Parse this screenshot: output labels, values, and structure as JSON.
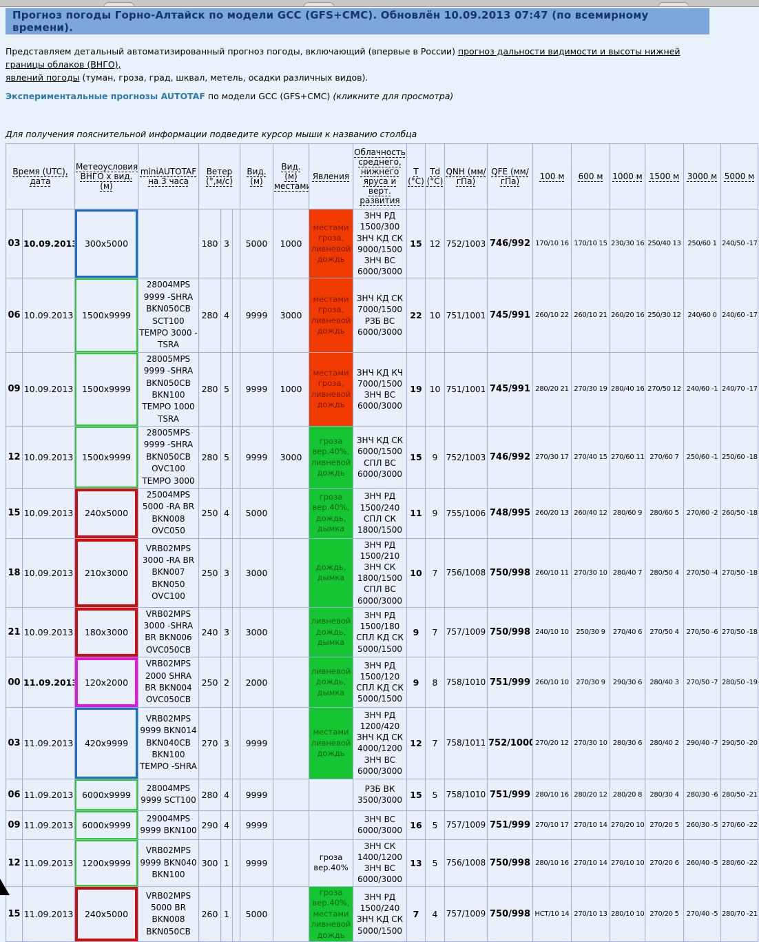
{
  "header": {
    "title": "Прогноз погоды Горно-Алтайск по модели GCC (GFS+CMC). Обновлён 10.09.2013 07:47 (по всемирному времени)."
  },
  "intro": {
    "text_before": "Представляем детальный автоматизированный прогноз погоды, включающий (впервые в России) ",
    "link_visibility": "прогноз дальности видимости и высоты нижней границы облаков (ВНГО),",
    "link_phenomena": "явлений погоды",
    "text_after": " (туман, гроза, град, шквал, метель, осадки различных видов)."
  },
  "autotaf": {
    "link": "Экспериментальные прогнозы AUTOTAF",
    "middle": " по модели GCC (GFS+CMC) ",
    "note": "(кликните для просмотра)"
  },
  "hint": "Для получения пояснительной информации подведите курсор мыши к названию столбца",
  "colors": {
    "banner_bg": "#7ca6dc",
    "title_color": "#17366a",
    "link_color": "#2e7bad",
    "ph_red_bg": "#f13a00",
    "ph_red_text": "#7a1c00",
    "ph_green_bg": "#16c532",
    "ph_green_text": "#156415",
    "ring_blue": "#1b6fc8",
    "ring_green": "#2fcc2f",
    "ring_red": "#cc0f0f",
    "ring_magenta": "#e018d8",
    "grid": "#9faedb",
    "cell_bg": "#e9f0fb"
  },
  "table": {
    "column_keys": [
      "time",
      "date",
      "meteo",
      "autotaf",
      "wind_dir",
      "wind_speed",
      "wind_gust",
      "vis",
      "vis_places",
      "phenomena",
      "clouds",
      "t",
      "td",
      "qnh",
      "qfe",
      "h100",
      "h600",
      "h1000",
      "h1500",
      "h3000",
      "h5000"
    ],
    "headers": [
      "Время (UTC), дата",
      "Метеоусловия ВНГО х вид. (м)",
      "miniAUTOTAF на 3 часа",
      "Ветер (°,м/с)",
      "Вид. (м)",
      "Вид. (м) местами*",
      "Явления",
      "Облачность среднего, нижнего яруса и верт. развития",
      "Т (°С)",
      "Td (°С)",
      "QNH (мм/гПа)",
      "QFE (мм/гПа)",
      "100 м",
      "600 м",
      "1000 м",
      "1500 м",
      "3000 м",
      "5000 м"
    ],
    "rows": [
      {
        "time": "03",
        "date": "10.09.2013",
        "date_bold": true,
        "meteo": "300x5000",
        "meteo_ring": "blue",
        "autotaf": "",
        "wind_dir": "180",
        "wind_speed": "3",
        "wind_gust": "",
        "vis": "5000",
        "vis_places": "1000",
        "phenomena": "местами гроза, ливневой дождь",
        "phenomena_style": "red",
        "clouds": "ЗНЧ РД 1500/300 ЗНЧ КД СК 9000/1500 ЗНЧ ВС 6000/3000",
        "t": "15",
        "td": "12",
        "qnh": "752/1003",
        "qfe": "746/992",
        "h100": "170/10 16",
        "h600": "170/10 15",
        "h1000": "230/30 16",
        "h1500": "250/40 13",
        "h3000": "250/60 1",
        "h5000": "240/50 -17"
      },
      {
        "time": "06",
        "date": "10.09.2013",
        "date_bold": false,
        "meteo": "1500x9999",
        "meteo_ring": "green",
        "autotaf": "28004MPS 9999 -SHRA BKN050CB SCT100 TEMPO 3000 -TSRA",
        "wind_dir": "280",
        "wind_speed": "4",
        "wind_gust": "",
        "vis": "9999",
        "vis_places": "3000",
        "phenomena": "местами гроза, ливневой дождь",
        "phenomena_style": "red",
        "clouds": "ЗНЧ КД СК 7000/1500 РЗБ ВС 6000/3000",
        "t": "22",
        "td": "10",
        "qnh": "751/1001",
        "qfe": "745/991",
        "h100": "260/10 22",
        "h600": "260/10 21",
        "h1000": "260/20 16",
        "h1500": "250/30 12",
        "h3000": "240/60 0",
        "h5000": "240/60 -17"
      },
      {
        "time": "09",
        "date": "10.09.2013",
        "date_bold": false,
        "meteo": "1500x9999",
        "meteo_ring": "green",
        "autotaf": "28005MPS 9999 -SHRA BKN050CB BKN100 TEMPO 1000 TSRA",
        "wind_dir": "280",
        "wind_speed": "5",
        "wind_gust": "",
        "vis": "9999",
        "vis_places": "1000",
        "phenomena": "местами гроза, ливневой дождь",
        "phenomena_style": "red",
        "clouds": "ЗНЧ КД КЧ 7000/1500 ЗНЧ ВС 6000/3000",
        "t": "19",
        "td": "10",
        "qnh": "751/1001",
        "qfe": "745/991",
        "h100": "280/20 21",
        "h600": "270/30 19",
        "h1000": "280/40 16",
        "h1500": "270/50 12",
        "h3000": "240/60 -1",
        "h5000": "240/70 -17"
      },
      {
        "time": "12",
        "date": "10.09.2013",
        "date_bold": false,
        "meteo": "1500x9999",
        "meteo_ring": "green",
        "autotaf": "28005MPS 9999 -SHRA BKN050CB OVC100 TEMPO 3000",
        "wind_dir": "280",
        "wind_speed": "5",
        "wind_gust": "",
        "vis": "9999",
        "vis_places": "3000",
        "phenomena": "гроза вер.40%, ливневой дождь",
        "phenomena_style": "green",
        "clouds": "ЗНЧ КД СК 6000/1500 СПЛ ВС 6000/3000",
        "t": "15",
        "td": "9",
        "qnh": "752/1003",
        "qfe": "746/992",
        "h100": "270/30 17",
        "h600": "270/40 15",
        "h1000": "270/60 11",
        "h1500": "270/60 7",
        "h3000": "250/60 -1",
        "h5000": "250/60 -18"
      },
      {
        "time": "15",
        "date": "10.09.2013",
        "date_bold": false,
        "meteo": "240x5000",
        "meteo_ring": "red",
        "autotaf": "25004MPS 5000 -RA BR BKN008 OVC050",
        "wind_dir": "250",
        "wind_speed": "4",
        "wind_gust": "",
        "vis": "5000",
        "vis_places": "",
        "phenomena": "гроза вер.40%, дождь, дымка",
        "phenomena_style": "green",
        "clouds": "ЗНЧ РД 1500/240 СПЛ СК 1800/1500",
        "t": "11",
        "td": "9",
        "qnh": "755/1006",
        "qfe": "748/995",
        "h100": "260/20 13",
        "h600": "260/40 12",
        "h1000": "280/60 9",
        "h1500": "280/60 5",
        "h3000": "270/60 -2",
        "h5000": "260/50 -18"
      },
      {
        "time": "18",
        "date": "10.09.2013",
        "date_bold": false,
        "meteo": "210x3000",
        "meteo_ring": "red",
        "autotaf": "VRB02MPS 3000 -RA BR BKN007 BKN050 OVC100",
        "wind_dir": "250",
        "wind_speed": "3",
        "wind_gust": "",
        "vis": "3000",
        "vis_places": "",
        "phenomena": "дождь, дымка",
        "phenomena_style": "green",
        "clouds": "ЗНЧ РД 1500/210 ЗНЧ СК 1800/1500 СПЛ ВС 6000/3000",
        "t": "10",
        "td": "7",
        "qnh": "756/1008",
        "qfe": "750/998",
        "h100": "260/10 11",
        "h600": "270/30 10",
        "h1000": "280/40 7",
        "h1500": "280/50 4",
        "h3000": "270/50 -4",
        "h5000": "270/50 -18"
      },
      {
        "time": "21",
        "date": "10.09.2013",
        "date_bold": false,
        "meteo": "180x3000",
        "meteo_ring": "red",
        "autotaf": "VRB02MPS 3000 -SHRA BR BKN006 OVC050CB",
        "wind_dir": "240",
        "wind_speed": "3",
        "wind_gust": "",
        "vis": "3000",
        "vis_places": "",
        "phenomena": "ливневой дождь, дымка",
        "phenomena_style": "green",
        "clouds": "ЗНЧ РД 1500/180 СПЛ КД СК 5000/1500",
        "t": "9",
        "td": "7",
        "qnh": "757/1009",
        "qfe": "750/998",
        "h100": "240/10 10",
        "h600": "250/30 9",
        "h1000": "270/40 6",
        "h1500": "270/50 4",
        "h3000": "270/50 -6",
        "h5000": "270/50 -18"
      },
      {
        "time": "00",
        "date": "11.09.2013",
        "date_bold": true,
        "meteo": "120x2000",
        "meteo_ring": "magenta",
        "autotaf": "VRB02MPS 2000 SHRA BR BKN004 OVC050CB",
        "wind_dir": "250",
        "wind_speed": "2",
        "wind_gust": "",
        "vis": "2000",
        "vis_places": "",
        "phenomena": "ливневой дождь, дымка",
        "phenomena_style": "green",
        "clouds": "ЗНЧ РД 1500/120 СПЛ КД СК 5000/1500",
        "t": "9",
        "td": "8",
        "qnh": "758/1010",
        "qfe": "751/999",
        "h100": "260/10 10",
        "h600": "270/30 9",
        "h1000": "290/30 6",
        "h1500": "280/40 3",
        "h3000": "270/50 -7",
        "h5000": "280/50 -19"
      },
      {
        "time": "03",
        "date": "11.09.2013",
        "date_bold": false,
        "meteo": "420x9999",
        "meteo_ring": "blue",
        "autotaf": "VRB02MPS 9999 BKN014 BKN040CB BKN100 TEMPO -SHRA",
        "wind_dir": "270",
        "wind_speed": "3",
        "wind_gust": "",
        "vis": "9999",
        "vis_places": "",
        "phenomena": "местами ливневой дождь",
        "phenomena_style": "green",
        "clouds": "ЗНЧ РД 1200/420 ЗНЧ КД СК 4000/1200 ЗНЧ ВС 6000/3000",
        "t": "12",
        "td": "7",
        "qnh": "758/1011",
        "qfe": "752/1000",
        "h100": "270/20 12",
        "h600": "270/30 10",
        "h1000": "280/30 6",
        "h1500": "280/40 2",
        "h3000": "290/40 -7",
        "h5000": "290/50 -20"
      },
      {
        "time": "06",
        "date": "11.09.2013",
        "date_bold": false,
        "meteo": "6000x9999",
        "meteo_ring": "green",
        "autotaf": "28004MPS 9999 SCT100",
        "wind_dir": "280",
        "wind_speed": "4",
        "wind_gust": "",
        "vis": "9999",
        "vis_places": "",
        "phenomena": "",
        "phenomena_style": "plain",
        "clouds": "РЗБ ВК 3500/3000",
        "t": "15",
        "td": "5",
        "qnh": "758/1010",
        "qfe": "751/999",
        "h100": "280/10 16",
        "h600": "280/20 12",
        "h1000": "280/20 8",
        "h1500": "280/30 4",
        "h3000": "280/30 -6",
        "h5000": "280/50 -21"
      },
      {
        "time": "09",
        "date": "11.09.2013",
        "date_bold": false,
        "meteo": "6000x9999",
        "meteo_ring": "green",
        "autotaf": "29004MPS 9999 BKN100",
        "wind_dir": "290",
        "wind_speed": "4",
        "wind_gust": "",
        "vis": "9999",
        "vis_places": "",
        "phenomena": "",
        "phenomena_style": "plain",
        "clouds": "ЗНЧ ВС 6000/3000",
        "t": "16",
        "td": "5",
        "qnh": "757/1009",
        "qfe": "751/999",
        "h100": "270/10 17",
        "h600": "270/10 14",
        "h1000": "270/20 10",
        "h1500": "270/20 5",
        "h3000": "260/30 -5",
        "h5000": "270/60 -22"
      },
      {
        "time": "12",
        "date": "11.09.2013",
        "date_bold": false,
        "meteo": "1200x9999",
        "meteo_ring": "green",
        "autotaf": "VRB02MPS 9999 BKN040 BKN100",
        "wind_dir": "300",
        "wind_speed": "1",
        "wind_gust": "",
        "vis": "9999",
        "vis_places": "",
        "phenomena": "гроза вер.40%",
        "phenomena_style": "plain",
        "clouds": "ЗНЧ СК 1400/1200 ЗНЧ ВС 6000/3000",
        "t": "13",
        "td": "5",
        "qnh": "756/1008",
        "qfe": "750/998",
        "h100": "280/10 16",
        "h600": "270/10 14",
        "h1000": "270/10 10",
        "h1500": "270/20 6",
        "h3000": "260/40 -5",
        "h5000": "280/60 -22"
      },
      {
        "time": "15",
        "date": "11.09.2013",
        "date_bold": false,
        "meteo": "240x5000",
        "meteo_ring": "red",
        "autotaf": "VRB02MPS 5000 BR BKN008 BKN050CB",
        "wind_dir": "260",
        "wind_speed": "1",
        "wind_gust": "",
        "vis": "5000",
        "vis_places": "",
        "phenomena": "гроза вер.40%, местами ливневой дождь",
        "phenomena_style": "green",
        "clouds": "ЗНЧ РД 1500/240 ЗНЧ КД СК 5000/1500",
        "t": "7",
        "td": "4",
        "qnh": "757/1009",
        "qfe": "750/998",
        "h100": "НСТ/10 14",
        "h600": "270/10 13",
        "h1000": "280/10 10",
        "h1500": "270/20 5",
        "h3000": "270/40 -5",
        "h5000": "280/70 -21"
      }
    ]
  }
}
